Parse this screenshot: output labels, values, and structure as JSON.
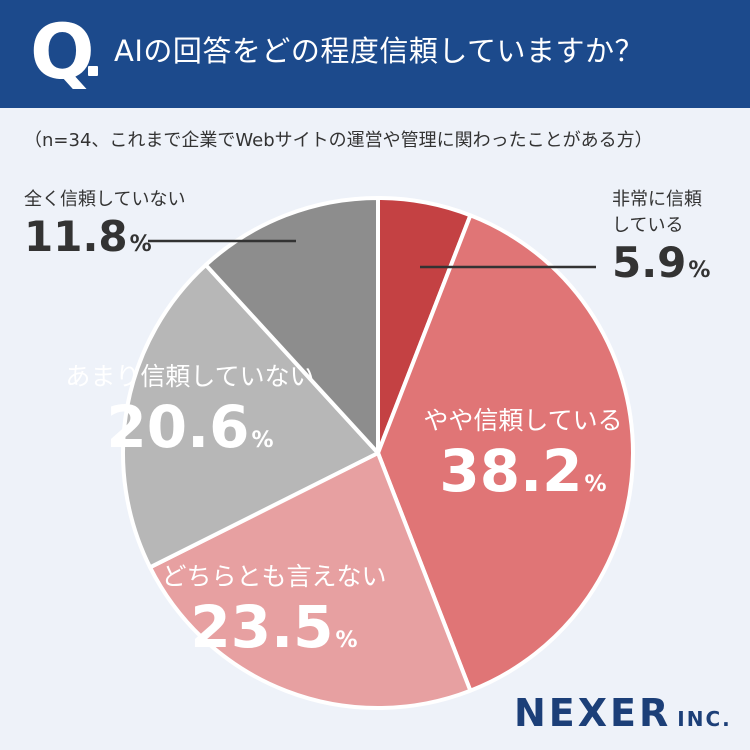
{
  "header": {
    "q_letter": "Q",
    "question": "AIの回答をどの程度信頼していますか？"
  },
  "subtitle": "（n=34、これまで企業でWebサイトの運営や管理に関わったことがある方）",
  "chart_data": {
    "type": "pie",
    "title": "AIの回答をどの程度信頼していますか？",
    "unit": "%",
    "slices": [
      {
        "label": "非常に信頼している",
        "label_lines": [
          "非常に信頼",
          "している"
        ],
        "value": 5.9,
        "value_text": "5.9",
        "color": "#c44143"
      },
      {
        "label": "やや信頼している",
        "label_lines": [
          "やや信頼している"
        ],
        "value": 38.2,
        "value_text": "38.2",
        "color": "#e07576"
      },
      {
        "label": "どちらとも言えない",
        "label_lines": [
          "どちらとも言えない"
        ],
        "value": 23.5,
        "value_text": "23.5",
        "color": "#e7a0a1"
      },
      {
        "label": "あまり信頼していない",
        "label_lines": [
          "あまり信頼していない"
        ],
        "value": 20.6,
        "value_text": "20.6",
        "color": "#b7b7b7"
      },
      {
        "label": "全く信頼していない",
        "label_lines": [
          "全く信頼していない"
        ],
        "value": 11.8,
        "value_text": "11.8",
        "color": "#8d8d8d"
      }
    ]
  },
  "logo": {
    "main": "NEXER",
    "suffix": "INC."
  }
}
